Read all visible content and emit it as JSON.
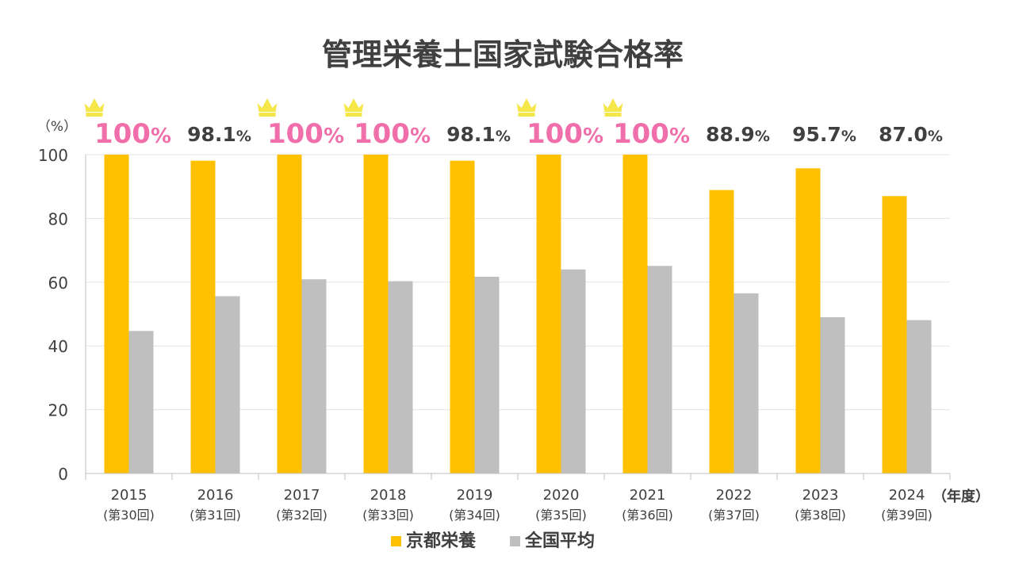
{
  "chart_data": {
    "type": "bar",
    "title": "管理栄養士国家試験合格率",
    "ylabel": "（%）",
    "xlabel": "（年度）",
    "ylim": [
      0,
      100
    ],
    "yticks": [
      0,
      20,
      40,
      60,
      80,
      100
    ],
    "grid": true,
    "categories": [
      "2015",
      "2016",
      "2017",
      "2018",
      "2019",
      "2020",
      "2021",
      "2022",
      "2023",
      "2024"
    ],
    "sublabels": [
      "(第30回)",
      "(第31回)",
      "(第32回)",
      "(第33回)",
      "(第34回)",
      "(第35回)",
      "(第36回)",
      "(第37回)",
      "(第38回)",
      "(第39回)"
    ],
    "series": [
      {
        "name": "京都栄養",
        "color": "#FFC000",
        "values": [
          100,
          98.1,
          100,
          100,
          98.1,
          100,
          100,
          88.9,
          95.7,
          87.0
        ]
      },
      {
        "name": "全国平均",
        "color": "#BFBFBF",
        "values": [
          44.7,
          55.6,
          60.9,
          60.3,
          61.7,
          64.0,
          65.1,
          56.5,
          49.0,
          48.1
        ]
      }
    ],
    "data_labels": {
      "values": [
        "100",
        "98.1",
        "100",
        "100",
        "98.1",
        "100",
        "100",
        "88.9",
        "95.7",
        "87.0"
      ],
      "unit": "%",
      "highlight": [
        true,
        false,
        true,
        true,
        false,
        true,
        true,
        false,
        false,
        false
      ],
      "highlight_color": "#F06EA9",
      "normal_color": "#404040"
    },
    "crown_icon": "crown-icon",
    "crown_color": "#F5E64A",
    "legend_position": "bottom-center"
  }
}
